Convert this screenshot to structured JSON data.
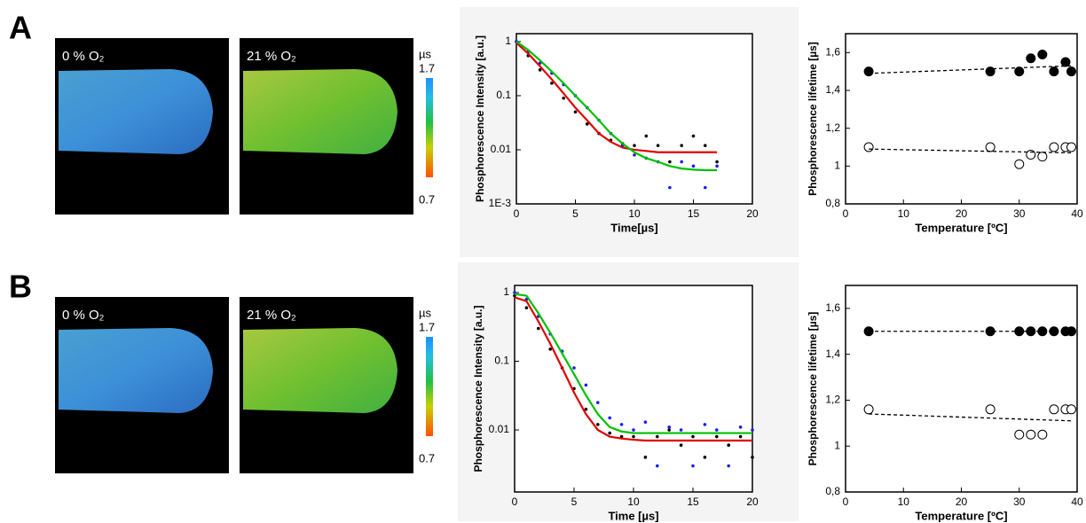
{
  "figure": {
    "panels": [
      {
        "label": "A",
        "images": [
          "0 % O₂",
          "21 % O₂"
        ],
        "colorbar": {
          "unit": "µs",
          "max": 1.7,
          "min": 0.7
        }
      },
      {
        "label": "B",
        "images": [
          "0 % O₂",
          "21 % O₂"
        ],
        "colorbar": {
          "unit": "µs",
          "max": 1.7,
          "min": 0.7
        }
      }
    ]
  },
  "chart_data": [
    {
      "type": "line",
      "log_y": true,
      "xlabel": "Time[µs]",
      "ylabel": "Phosphorescence Intensity [a.u.]",
      "xlim": [
        0,
        20
      ],
      "xticks": [
        0,
        5,
        10,
        15,
        20
      ],
      "ylim": [
        0.001,
        1.4
      ],
      "yticks": [
        1,
        0.1,
        0.01,
        {
          "value": 0.001,
          "label": "1E-3"
        }
      ],
      "series": [
        {
          "color": "#000000",
          "mode": "markers",
          "x": [
            0,
            1,
            2,
            3,
            4,
            5,
            6,
            7,
            8,
            9,
            10,
            11,
            12,
            13,
            14,
            15,
            16,
            17
          ],
          "values": [
            1,
            0.55,
            0.3,
            0.17,
            0.09,
            0.05,
            0.03,
            0.02,
            0.015,
            0.013,
            0.012,
            0.018,
            0.012,
            0.006,
            0.012,
            0.018,
            0.012,
            0.006
          ]
        },
        {
          "color": "#1a1aff",
          "mode": "markers",
          "x": [
            0,
            1,
            2,
            3,
            4,
            5,
            6,
            7,
            8,
            9,
            10,
            11,
            12,
            13,
            14,
            15,
            16,
            17
          ],
          "values": [
            1,
            0.65,
            0.4,
            0.26,
            0.16,
            0.1,
            0.06,
            0.035,
            0.02,
            0.012,
            0.008,
            0.007,
            0.006,
            0.002,
            0.006,
            0.005,
            0.002,
            0.005
          ]
        },
        {
          "color": "#e00000",
          "mode": "line",
          "x": [
            0,
            1,
            2,
            3,
            4,
            5,
            6,
            7,
            8,
            9,
            10,
            11,
            12,
            13,
            14,
            15,
            16,
            17
          ],
          "values": [
            0.95,
            0.6,
            0.35,
            0.2,
            0.11,
            0.06,
            0.035,
            0.02,
            0.014,
            0.011,
            0.01,
            0.0095,
            0.009,
            0.009,
            0.009,
            0.009,
            0.009,
            0.009
          ]
        },
        {
          "color": "#00c000",
          "mode": "line",
          "x": [
            0,
            1,
            2,
            3,
            4,
            5,
            6,
            7,
            8,
            9,
            10,
            11,
            12,
            13,
            14,
            15,
            16,
            17
          ],
          "values": [
            1,
            0.7,
            0.45,
            0.28,
            0.17,
            0.1,
            0.06,
            0.035,
            0.02,
            0.013,
            0.009,
            0.007,
            0.006,
            0.005,
            0.0045,
            0.0043,
            0.0042,
            0.0042
          ]
        }
      ]
    },
    {
      "type": "scatter",
      "xlabel": "Temperature [ºC]",
      "ylabel": "Phosphorescence lifetime [µs]",
      "xlim": [
        0,
        40
      ],
      "xticks": [
        0,
        10,
        20,
        30,
        40
      ],
      "ylim": [
        0.8,
        1.7
      ],
      "yticks": [
        {
          "value": 0.8,
          "label": "0,8"
        },
        1,
        {
          "value": 1.2,
          "label": "1,2"
        },
        {
          "value": 1.4,
          "label": "1,4"
        },
        {
          "value": 1.6,
          "label": "1,6"
        }
      ],
      "series": [
        {
          "color": "#000000",
          "marker": "filled",
          "x": [
            4,
            25,
            30,
            32,
            34,
            36,
            38,
            39
          ],
          "values": [
            1.5,
            1.5,
            1.5,
            1.57,
            1.59,
            1.5,
            1.55,
            1.5
          ]
        },
        {
          "color": "#000000",
          "marker": "open",
          "x": [
            4,
            25,
            30,
            32,
            34,
            36,
            38,
            39
          ],
          "values": [
            1.1,
            1.1,
            1.01,
            1.06,
            1.05,
            1.1,
            1.1,
            1.1
          ]
        },
        {
          "color": "#000000",
          "dash": true,
          "x": [
            4,
            39
          ],
          "values": [
            1.49,
            1.53
          ]
        },
        {
          "color": "#000000",
          "dash": true,
          "x": [
            4,
            39
          ],
          "values": [
            1.09,
            1.07
          ]
        }
      ]
    },
    {
      "type": "line",
      "log_y": true,
      "xlabel": "Time [µs]",
      "ylabel": "Phosphorescence Intensity [a.u.]",
      "xlim": [
        0,
        20
      ],
      "xticks": [
        0,
        5,
        10,
        15,
        20
      ],
      "ylim": [
        0.00125,
        1.27
      ],
      "yticks": [
        1,
        0.1,
        0.01
      ],
      "series": [
        {
          "color": "#000000",
          "mode": "markers",
          "x": [
            0,
            1,
            2,
            3,
            4,
            5,
            6,
            7,
            8,
            9,
            10,
            11,
            12,
            13,
            14,
            15,
            16,
            17,
            18,
            19,
            20
          ],
          "values": [
            0.9,
            0.6,
            0.3,
            0.15,
            0.08,
            0.04,
            0.02,
            0.012,
            0.009,
            0.008,
            0.008,
            0.004,
            0.008,
            0.01,
            0.006,
            0.008,
            0.004,
            0.008,
            0.006,
            0.008,
            0.004
          ]
        },
        {
          "color": "#1a1aff",
          "mode": "markers",
          "x": [
            0,
            1,
            2,
            3,
            4,
            5,
            6,
            7,
            8,
            9,
            10,
            11,
            12,
            13,
            14,
            15,
            16,
            17,
            18,
            19,
            20
          ],
          "values": [
            1,
            0.8,
            0.45,
            0.25,
            0.14,
            0.08,
            0.045,
            0.025,
            0.015,
            0.012,
            0.01,
            0.013,
            0.003,
            0.011,
            0.01,
            0.003,
            0.012,
            0.01,
            0.003,
            0.011,
            0.01
          ]
        },
        {
          "color": "#e00000",
          "mode": "line",
          "x": [
            0,
            1,
            2,
            3,
            4,
            5,
            6,
            7,
            8,
            9,
            10,
            11,
            12,
            13,
            14,
            15,
            16,
            17,
            18,
            19,
            20
          ],
          "values": [
            0.85,
            0.75,
            0.38,
            0.18,
            0.08,
            0.035,
            0.017,
            0.01,
            0.008,
            0.0075,
            0.0072,
            0.007,
            0.007,
            0.007,
            0.007,
            0.007,
            0.007,
            0.007,
            0.007,
            0.007,
            0.007
          ]
        },
        {
          "color": "#00c000",
          "mode": "line",
          "x": [
            0,
            1,
            2,
            3,
            4,
            5,
            6,
            7,
            8,
            9,
            10,
            11,
            12,
            13,
            14,
            15,
            16,
            17,
            18,
            19,
            20
          ],
          "values": [
            0.95,
            0.9,
            0.5,
            0.26,
            0.13,
            0.065,
            0.032,
            0.017,
            0.011,
            0.0095,
            0.009,
            0.009,
            0.009,
            0.009,
            0.009,
            0.009,
            0.009,
            0.009,
            0.009,
            0.009,
            0.009
          ]
        }
      ]
    },
    {
      "type": "scatter",
      "xlabel": "Temperature [ºC]",
      "ylabel": "Phosphorescence lifetime [µs]",
      "xlim": [
        0,
        40
      ],
      "xticks": [
        0,
        10,
        20,
        30,
        40
      ],
      "ylim": [
        0.8,
        1.7
      ],
      "yticks": [
        {
          "value": 0.8,
          "label": "0,8"
        },
        1,
        {
          "value": 1.2,
          "label": "1,2"
        },
        {
          "value": 1.4,
          "label": "1,4"
        },
        {
          "value": 1.6,
          "label": "1,6"
        }
      ],
      "series": [
        {
          "color": "#000000",
          "marker": "filled",
          "x": [
            4,
            25,
            30,
            32,
            34,
            36,
            38,
            39
          ],
          "values": [
            1.5,
            1.5,
            1.5,
            1.5,
            1.5,
            1.5,
            1.5,
            1.5
          ]
        },
        {
          "color": "#000000",
          "marker": "open",
          "x": [
            4,
            25,
            30,
            32,
            34,
            36,
            38,
            39
          ],
          "values": [
            1.16,
            1.16,
            1.05,
            1.05,
            1.05,
            1.16,
            1.16,
            1.16
          ]
        },
        {
          "color": "#000000",
          "dash": true,
          "x": [
            4,
            39
          ],
          "values": [
            1.5,
            1.5
          ]
        },
        {
          "color": "#000000",
          "dash": true,
          "x": [
            4,
            39
          ],
          "values": [
            1.14,
            1.11
          ]
        }
      ]
    }
  ]
}
